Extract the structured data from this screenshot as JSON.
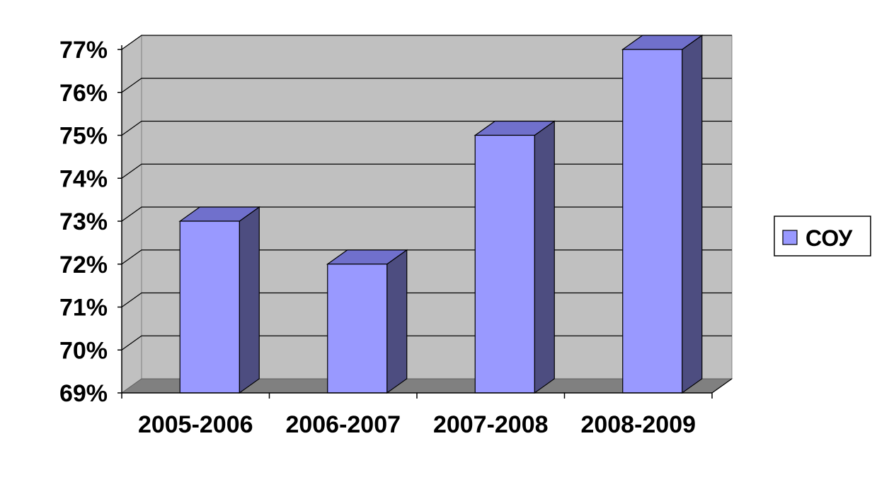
{
  "chart_data": {
    "type": "bar",
    "style": "3d-column",
    "categories": [
      "2005-2006",
      "2006-2007",
      "2007-2008",
      "2008-2009"
    ],
    "series": [
      {
        "name": "СОУ",
        "values": [
          73,
          72,
          75,
          77
        ],
        "color": "#9999ff",
        "side_color": "#4d4d80",
        "top_color": "#7070cc"
      }
    ],
    "ylim": [
      69,
      77
    ],
    "yticks": [
      69,
      70,
      71,
      72,
      73,
      74,
      75,
      76,
      77
    ],
    "ytick_labels": [
      "69%",
      "70%",
      "71%",
      "72%",
      "73%",
      "74%",
      "75%",
      "76%",
      "77%"
    ],
    "title": "",
    "xlabel": "",
    "ylabel": "",
    "grid": true,
    "legend": "right",
    "colors": {
      "wall": "#c0c0c0",
      "floor": "#808080",
      "grid": "#000000"
    }
  }
}
